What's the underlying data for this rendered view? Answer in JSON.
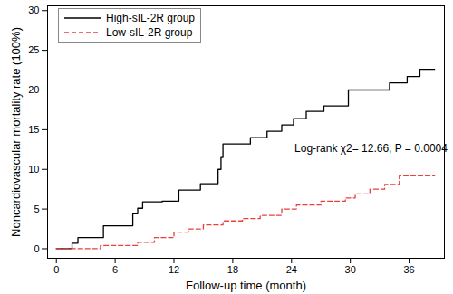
{
  "chart_data": {
    "type": "line",
    "x_label": "Follow-up time (month)",
    "y_label": "Noncardiovascular mortality rate (100%)",
    "xlim": [
      -0.9,
      39.6
    ],
    "xticks": [
      0,
      6,
      12,
      18,
      24,
      30,
      36
    ],
    "ylim": [
      -1.2,
      30.6
    ],
    "yticks": [
      0,
      5,
      10,
      15,
      20,
      25,
      30
    ],
    "legend": "top-left",
    "grid": false,
    "annotations": [
      {
        "text": "Log-rank χ2= 12.66, P = 0.0004",
        "x": 24.3,
        "y": 12.6
      }
    ],
    "series": [
      {
        "name": "High-sIL-2R group",
        "color": "#000000",
        "line_style": "solid",
        "x": [
          0,
          1.6,
          2.2,
          4.8,
          7.8,
          8.3,
          8.8,
          10.8,
          12.5,
          14.7,
          16.5,
          16.8,
          17.0,
          18.3,
          19.8,
          21.5,
          23.0,
          24.2,
          25.5,
          27.3,
          29.8,
          34.0,
          35.8,
          37.1,
          38.6
        ],
        "values": [
          0,
          0.7,
          1.4,
          2.9,
          4.4,
          5.1,
          5.9,
          6.0,
          7.4,
          8.2,
          10.0,
          11.5,
          13.2,
          13.2,
          14.0,
          14.8,
          15.6,
          16.4,
          17.3,
          18.0,
          20.0,
          20.9,
          21.7,
          22.6,
          22.6
        ]
      },
      {
        "name": "Low-sIL-2R group",
        "color": "#e8403a",
        "line_style": "dashed",
        "x": [
          0,
          4.5,
          8.3,
          10.0,
          12.0,
          13.5,
          15.0,
          17.0,
          19.0,
          20.8,
          23.0,
          24.5,
          27.0,
          29.5,
          30.5,
          32.0,
          33.5,
          35.0,
          38.6
        ],
        "values": [
          0,
          0.4,
          0.8,
          1.4,
          2.1,
          2.5,
          3.0,
          3.5,
          3.8,
          4.2,
          5.0,
          5.5,
          6.0,
          6.4,
          6.9,
          7.5,
          8.1,
          9.2,
          9.2
        ]
      }
    ]
  }
}
